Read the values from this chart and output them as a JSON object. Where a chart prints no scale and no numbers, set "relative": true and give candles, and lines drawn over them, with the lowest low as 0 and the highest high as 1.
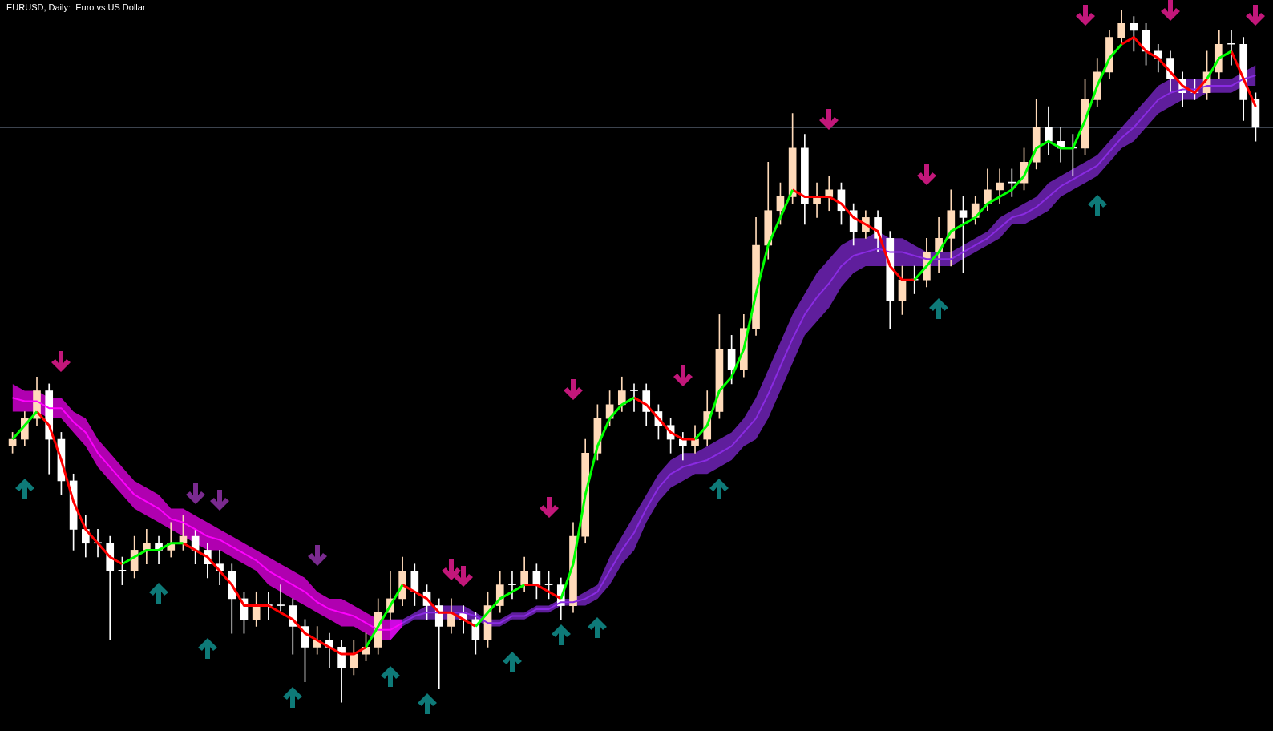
{
  "chart_data": {
    "type": "candlestick",
    "title": "EURUSD, Daily:  Euro vs US Dollar",
    "relative": true,
    "grid": false,
    "legend": false,
    "marker": "none",
    "categories": [
      null,
      null,
      null,
      null,
      null,
      null,
      null,
      null,
      null,
      null,
      null,
      null,
      null,
      null,
      null,
      null,
      null,
      null,
      null,
      null,
      null,
      null,
      null,
      null,
      null,
      null,
      null,
      null,
      null,
      null,
      null,
      null,
      null,
      null,
      null,
      null,
      null,
      null,
      null,
      null,
      null,
      null,
      null,
      null,
      null,
      null,
      null,
      null,
      null,
      null,
      null,
      null,
      null,
      null,
      null,
      null,
      null,
      null,
      null,
      null,
      null,
      null,
      null,
      null,
      null,
      null,
      null,
      null,
      null,
      null,
      null,
      null,
      null,
      null,
      null,
      null,
      null,
      null,
      null,
      null,
      null,
      null,
      null,
      null,
      null,
      null,
      null,
      null,
      null,
      null,
      null,
      null,
      null,
      null,
      null,
      null,
      null,
      null,
      null,
      null,
      null,
      null,
      null
    ],
    "ohlc": [
      [
        0.37,
        0.39,
        0.36,
        0.38
      ],
      [
        0.38,
        0.42,
        0.37,
        0.41
      ],
      [
        0.41,
        0.47,
        0.4,
        0.45
      ],
      [
        0.45,
        0.46,
        0.33,
        0.38
      ],
      [
        0.38,
        0.39,
        0.3,
        0.32
      ],
      [
        0.32,
        0.33,
        0.22,
        0.25
      ],
      [
        0.25,
        0.27,
        0.21,
        0.23
      ],
      [
        0.23,
        0.25,
        0.21,
        0.23
      ],
      [
        0.23,
        0.24,
        0.09,
        0.19
      ],
      [
        0.19,
        0.21,
        0.17,
        0.19
      ],
      [
        0.19,
        0.24,
        0.18,
        0.22
      ],
      [
        0.22,
        0.25,
        0.2,
        0.23
      ],
      [
        0.23,
        0.24,
        0.2,
        0.22
      ],
      [
        0.22,
        0.26,
        0.21,
        0.23
      ],
      [
        0.23,
        0.27,
        0.22,
        0.24
      ],
      [
        0.24,
        0.25,
        0.2,
        0.22
      ],
      [
        0.22,
        0.23,
        0.18,
        0.2
      ],
      [
        0.2,
        0.22,
        0.17,
        0.19
      ],
      [
        0.19,
        0.2,
        0.1,
        0.15
      ],
      [
        0.15,
        0.16,
        0.1,
        0.12
      ],
      [
        0.12,
        0.16,
        0.11,
        0.14
      ],
      [
        0.14,
        0.16,
        0.12,
        0.14
      ],
      [
        0.14,
        0.17,
        0.13,
        0.14
      ],
      [
        0.14,
        0.15,
        0.07,
        0.11
      ],
      [
        0.11,
        0.12,
        0.03,
        0.08
      ],
      [
        0.08,
        0.11,
        0.07,
        0.09
      ],
      [
        0.09,
        0.1,
        0.05,
        0.08
      ],
      [
        0.08,
        0.09,
        0.0,
        0.05
      ],
      [
        0.05,
        0.09,
        0.04,
        0.07
      ],
      [
        0.07,
        0.1,
        0.06,
        0.08
      ],
      [
        0.08,
        0.15,
        0.07,
        0.13
      ],
      [
        0.13,
        0.19,
        0.12,
        0.15
      ],
      [
        0.15,
        0.21,
        0.14,
        0.19
      ],
      [
        0.19,
        0.2,
        0.14,
        0.16
      ],
      [
        0.16,
        0.17,
        0.12,
        0.14
      ],
      [
        0.14,
        0.15,
        0.02,
        0.11
      ],
      [
        0.11,
        0.15,
        0.1,
        0.13
      ],
      [
        0.13,
        0.14,
        0.1,
        0.12
      ],
      [
        0.12,
        0.13,
        0.07,
        0.09
      ],
      [
        0.09,
        0.16,
        0.08,
        0.14
      ],
      [
        0.14,
        0.19,
        0.13,
        0.17
      ],
      [
        0.17,
        0.19,
        0.15,
        0.17
      ],
      [
        0.17,
        0.21,
        0.16,
        0.19
      ],
      [
        0.19,
        0.2,
        0.15,
        0.17
      ],
      [
        0.17,
        0.19,
        0.15,
        0.17
      ],
      [
        0.17,
        0.18,
        0.12,
        0.14
      ],
      [
        0.14,
        0.26,
        0.13,
        0.24
      ],
      [
        0.24,
        0.38,
        0.23,
        0.36
      ],
      [
        0.36,
        0.43,
        0.35,
        0.41
      ],
      [
        0.41,
        0.45,
        0.4,
        0.43
      ],
      [
        0.43,
        0.47,
        0.42,
        0.45
      ],
      [
        0.45,
        0.46,
        0.42,
        0.45
      ],
      [
        0.45,
        0.46,
        0.4,
        0.42
      ],
      [
        0.42,
        0.43,
        0.38,
        0.4
      ],
      [
        0.4,
        0.41,
        0.36,
        0.38
      ],
      [
        0.38,
        0.39,
        0.35,
        0.37
      ],
      [
        0.37,
        0.4,
        0.36,
        0.38
      ],
      [
        0.38,
        0.45,
        0.37,
        0.42
      ],
      [
        0.42,
        0.56,
        0.41,
        0.51
      ],
      [
        0.51,
        0.53,
        0.46,
        0.48
      ],
      [
        0.48,
        0.56,
        0.47,
        0.54
      ],
      [
        0.54,
        0.7,
        0.53,
        0.66
      ],
      [
        0.66,
        0.78,
        0.64,
        0.71
      ],
      [
        0.71,
        0.75,
        0.69,
        0.73
      ],
      [
        0.73,
        0.85,
        0.72,
        0.8
      ],
      [
        0.8,
        0.82,
        0.69,
        0.72
      ],
      [
        0.72,
        0.75,
        0.7,
        0.73
      ],
      [
        0.73,
        0.76,
        0.71,
        0.74
      ],
      [
        0.74,
        0.75,
        0.69,
        0.71
      ],
      [
        0.71,
        0.72,
        0.66,
        0.68
      ],
      [
        0.68,
        0.71,
        0.67,
        0.7
      ],
      [
        0.7,
        0.71,
        0.65,
        0.67
      ],
      [
        0.67,
        0.68,
        0.54,
        0.58
      ],
      [
        0.58,
        0.63,
        0.56,
        0.61
      ],
      [
        0.61,
        0.63,
        0.59,
        0.61
      ],
      [
        0.61,
        0.67,
        0.6,
        0.65
      ],
      [
        0.65,
        0.7,
        0.62,
        0.67
      ],
      [
        0.67,
        0.74,
        0.63,
        0.71
      ],
      [
        0.71,
        0.73,
        0.62,
        0.7
      ],
      [
        0.7,
        0.73,
        0.69,
        0.72
      ],
      [
        0.72,
        0.77,
        0.71,
        0.74
      ],
      [
        0.74,
        0.77,
        0.72,
        0.75
      ],
      [
        0.75,
        0.77,
        0.73,
        0.75
      ],
      [
        0.75,
        0.8,
        0.74,
        0.78
      ],
      [
        0.78,
        0.87,
        0.77,
        0.83
      ],
      [
        0.83,
        0.86,
        0.79,
        0.81
      ],
      [
        0.81,
        0.83,
        0.78,
        0.8
      ],
      [
        0.8,
        0.82,
        0.76,
        0.8
      ],
      [
        0.8,
        0.9,
        0.79,
        0.87
      ],
      [
        0.87,
        0.93,
        0.86,
        0.91
      ],
      [
        0.91,
        0.97,
        0.9,
        0.96
      ],
      [
        0.96,
        1.0,
        0.95,
        0.98
      ],
      [
        0.98,
        0.99,
        0.94,
        0.97
      ],
      [
        0.97,
        0.98,
        0.92,
        0.94
      ],
      [
        0.94,
        0.95,
        0.91,
        0.93
      ],
      [
        0.93,
        0.94,
        0.88,
        0.9
      ],
      [
        0.9,
        0.91,
        0.86,
        0.88
      ],
      [
        0.88,
        0.9,
        0.87,
        0.88
      ],
      [
        0.88,
        0.94,
        0.87,
        0.91
      ],
      [
        0.91,
        0.97,
        0.9,
        0.95
      ],
      [
        0.95,
        0.97,
        0.92,
        0.95
      ],
      [
        0.95,
        0.96,
        0.84,
        0.87
      ],
      [
        0.87,
        0.88,
        0.81,
        0.83
      ]
    ],
    "colors": [
      "#ffdab9",
      "#ffdab9",
      "#ffdab9",
      "#ffffff",
      "#ffffff",
      "#ffffff",
      "#ffffff",
      "#ffffff",
      "#ffffff",
      "#ffffff",
      "#ffdab9",
      "#ffdab9",
      "#ffffff",
      "#ffdab9",
      "#ffdab9",
      "#ffffff",
      "#ffffff",
      "#ffffff",
      "#ffffff",
      "#ffffff",
      "#ffdab9",
      "#ffffff",
      "#ffffff",
      "#ffffff",
      "#ffffff",
      "#ffdab9",
      "#ffffff",
      "#ffffff",
      "#ffdab9",
      "#ffdab9",
      "#ffdab9",
      "#ffdab9",
      "#ffdab9",
      "#ffffff",
      "#ffffff",
      "#ffffff",
      "#ffdab9",
      "#ffffff",
      "#ffffff",
      "#ffdab9",
      "#ffdab9",
      "#ffffff",
      "#ffdab9",
      "#ffffff",
      "#ffffff",
      "#ffffff",
      "#ffdab9",
      "#ffdab9",
      "#ffdab9",
      "#ffdab9",
      "#ffdab9",
      "#ffffff",
      "#ffffff",
      "#ffffff",
      "#ffffff",
      "#ffffff",
      "#ffdab9",
      "#ffdab9",
      "#ffdab9",
      "#ffffff",
      "#ffdab9",
      "#ffdab9",
      "#ffdab9",
      "#ffdab9",
      "#ffdab9",
      "#ffffff",
      "#ffdab9",
      "#ffdab9",
      "#ffffff",
      "#ffffff",
      "#ffdab9",
      "#ffffff",
      "#ffffff",
      "#ffdab9",
      "#ffffff",
      "#ffdab9",
      "#ffdab9",
      "#ffdab9",
      "#ffffff",
      "#ffdab9",
      "#ffdab9",
      "#ffdab9",
      "#ffffff",
      "#ffdab9",
      "#ffdab9",
      "#ffffff",
      "#ffffff",
      "#ffffff",
      "#ffdab9",
      "#ffdab9",
      "#ffdab9",
      "#ffdab9",
      "#ffffff",
      "#ffffff",
      "#ffffff",
      "#ffffff",
      "#ffffff",
      "#ffffff",
      "#ffdab9",
      "#ffdab9",
      "#ffffff",
      "#ffffff",
      "#ffffff"
    ],
    "ref_lines": [
      {
        "axis": "y",
        "value": 0.83,
        "color": "#7f8fa6"
      }
    ],
    "series": [
      {
        "type": "line",
        "color": "#ff00ff",
        "values": [
          0.44,
          0.435,
          0.435,
          0.425,
          0.425,
          0.405,
          0.39,
          0.36,
          0.34,
          0.32,
          0.3,
          0.29,
          0.28,
          0.265,
          0.26,
          0.25,
          0.24,
          0.235,
          0.225,
          0.215,
          0.205,
          0.19,
          0.18,
          0.17,
          0.16,
          0.145,
          0.135,
          0.13,
          0.125,
          0.115,
          0.105,
          0.105,
          0.115,
          null,
          null,
          null,
          null,
          null,
          null,
          null,
          null,
          null,
          null,
          null,
          null,
          null,
          null,
          null,
          null,
          null,
          null,
          null,
          null,
          null,
          null,
          null,
          null,
          null,
          null,
          null,
          null,
          null,
          null,
          null,
          null,
          null,
          null,
          null,
          null,
          null,
          null,
          null,
          null,
          null,
          null,
          null,
          null,
          null,
          null,
          null,
          null,
          null,
          null,
          null,
          null,
          null,
          null,
          null,
          null,
          null,
          null,
          null,
          null,
          null,
          null,
          null,
          null,
          null,
          null,
          null,
          null,
          null,
          null
        ],
        "upper": [
          0.46,
          0.45,
          0.45,
          0.44,
          0.44,
          0.42,
          0.41,
          0.38,
          0.36,
          0.34,
          0.32,
          0.31,
          0.3,
          0.28,
          0.28,
          0.27,
          0.26,
          0.25,
          0.24,
          0.23,
          0.22,
          0.21,
          0.2,
          0.19,
          0.18,
          0.16,
          0.15,
          0.15,
          0.14,
          0.13,
          0.12,
          0.12,
          0.12,
          null,
          null,
          null,
          null,
          null,
          null,
          null,
          null,
          null,
          null,
          null,
          null,
          null,
          null,
          null,
          null,
          null,
          null,
          null,
          null,
          null,
          null,
          null,
          null,
          null,
          null,
          null,
          null,
          null,
          null,
          null,
          null,
          null,
          null,
          null,
          null,
          null,
          null,
          null,
          null,
          null,
          null,
          null,
          null,
          null,
          null,
          null,
          null,
          null,
          null,
          null,
          null,
          null,
          null,
          null,
          null,
          null,
          null,
          null,
          null,
          null,
          null,
          null,
          null,
          null,
          null,
          null,
          null,
          null,
          null
        ],
        "lower": [
          0.42,
          0.42,
          0.42,
          0.41,
          0.41,
          0.39,
          0.37,
          0.34,
          0.32,
          0.3,
          0.28,
          0.27,
          0.26,
          0.25,
          0.24,
          0.23,
          0.22,
          0.22,
          0.21,
          0.2,
          0.19,
          0.17,
          0.16,
          0.15,
          0.14,
          0.13,
          0.12,
          0.11,
          0.11,
          0.1,
          0.09,
          0.09,
          0.11,
          null,
          null,
          null,
          null,
          null,
          null,
          null,
          null,
          null,
          null,
          null,
          null,
          null,
          null,
          null,
          null,
          null,
          null,
          null,
          null,
          null,
          null,
          null,
          null,
          null,
          null,
          null,
          null,
          null,
          null,
          null,
          null,
          null,
          null,
          null,
          null,
          null,
          null,
          null,
          null,
          null,
          null,
          null,
          null,
          null,
          null,
          null,
          null,
          null,
          null,
          null,
          null,
          null,
          null,
          null,
          null,
          null,
          null,
          null,
          null,
          null,
          null,
          null,
          null,
          null,
          null,
          null,
          null,
          null,
          null
        ]
      },
      {
        "type": "line",
        "color": "#8a2be2",
        "values": [
          null,
          null,
          null,
          null,
          null,
          null,
          null,
          null,
          null,
          null,
          null,
          null,
          null,
          null,
          null,
          null,
          null,
          null,
          null,
          null,
          null,
          null,
          null,
          null,
          null,
          null,
          null,
          null,
          null,
          null,
          null,
          null,
          0.115,
          0.125,
          0.13,
          0.13,
          0.13,
          0.13,
          0.125,
          0.115,
          0.115,
          0.125,
          0.125,
          0.135,
          0.135,
          0.145,
          0.145,
          0.15,
          0.16,
          0.19,
          0.22,
          0.245,
          0.28,
          0.31,
          0.33,
          0.34,
          0.345,
          0.35,
          0.36,
          0.37,
          0.39,
          0.41,
          0.445,
          0.485,
          0.525,
          0.56,
          0.585,
          0.605,
          0.63,
          0.645,
          0.65,
          0.655,
          0.65,
          0.65,
          0.645,
          0.64,
          0.64,
          0.64,
          0.65,
          0.66,
          0.67,
          0.685,
          0.7,
          0.705,
          0.715,
          0.73,
          0.745,
          0.755,
          0.765,
          0.775,
          0.795,
          0.815,
          0.83,
          0.85,
          0.87,
          0.88,
          0.885,
          0.885,
          0.89,
          0.89,
          0.89,
          0.9,
          0.905
        ],
        "upper": [
          null,
          null,
          null,
          null,
          null,
          null,
          null,
          null,
          null,
          null,
          null,
          null,
          null,
          null,
          null,
          null,
          null,
          null,
          null,
          null,
          null,
          null,
          null,
          null,
          null,
          null,
          null,
          null,
          null,
          null,
          null,
          0.12,
          0.12,
          0.13,
          0.14,
          0.14,
          0.14,
          0.14,
          0.13,
          0.12,
          0.12,
          0.13,
          0.13,
          0.14,
          0.14,
          0.15,
          0.15,
          0.16,
          0.17,
          0.21,
          0.24,
          0.27,
          0.3,
          0.33,
          0.35,
          0.36,
          0.36,
          0.37,
          0.38,
          0.39,
          0.41,
          0.44,
          0.48,
          0.52,
          0.56,
          0.59,
          0.62,
          0.64,
          0.66,
          0.67,
          0.67,
          0.68,
          0.67,
          0.67,
          0.66,
          0.65,
          0.65,
          0.65,
          0.66,
          0.67,
          0.68,
          0.7,
          0.71,
          0.72,
          0.73,
          0.75,
          0.76,
          0.77,
          0.78,
          0.79,
          0.81,
          0.83,
          0.85,
          0.87,
          0.89,
          0.9,
          0.9,
          0.9,
          0.9,
          0.9,
          0.9,
          0.91,
          0.92
        ],
        "lower": [
          null,
          null,
          null,
          null,
          null,
          null,
          null,
          null,
          null,
          null,
          null,
          null,
          null,
          null,
          null,
          null,
          null,
          null,
          null,
          null,
          null,
          null,
          null,
          null,
          null,
          null,
          null,
          null,
          null,
          null,
          null,
          0.09,
          0.11,
          0.12,
          0.12,
          0.12,
          0.12,
          0.12,
          0.12,
          0.11,
          0.11,
          0.12,
          0.12,
          0.13,
          0.13,
          0.14,
          0.14,
          0.14,
          0.15,
          0.17,
          0.2,
          0.22,
          0.26,
          0.29,
          0.31,
          0.32,
          0.33,
          0.33,
          0.34,
          0.35,
          0.37,
          0.38,
          0.41,
          0.45,
          0.49,
          0.53,
          0.55,
          0.57,
          0.6,
          0.62,
          0.63,
          0.63,
          0.63,
          0.63,
          0.63,
          0.63,
          0.63,
          0.63,
          0.64,
          0.65,
          0.66,
          0.67,
          0.69,
          0.69,
          0.7,
          0.71,
          0.73,
          0.74,
          0.75,
          0.76,
          0.78,
          0.8,
          0.81,
          0.83,
          0.85,
          0.86,
          0.87,
          0.87,
          0.88,
          0.88,
          0.88,
          0.89,
          0.89
        ]
      },
      {
        "type": "line",
        "color": "#00ff00",
        "values": [
          0.38,
          0.4,
          0.42,
          null,
          null,
          null,
          null,
          null,
          null,
          0.2,
          0.21,
          0.22,
          0.22,
          0.23,
          0.23,
          null,
          null,
          null,
          null,
          null,
          null,
          null,
          null,
          null,
          null,
          null,
          null,
          null,
          null,
          0.08,
          0.11,
          0.14,
          0.17,
          null,
          null,
          null,
          null,
          null,
          0.11,
          0.13,
          0.15,
          0.16,
          0.17,
          null,
          null,
          0.15,
          0.2,
          0.3,
          0.37,
          0.41,
          0.43,
          0.44,
          null,
          null,
          null,
          null,
          0.38,
          0.4,
          0.45,
          0.47,
          0.51,
          0.59,
          0.66,
          0.7,
          0.74,
          null,
          null,
          null,
          null,
          null,
          null,
          null,
          null,
          null,
          0.61,
          0.63,
          0.65,
          0.68,
          0.69,
          0.7,
          0.72,
          0.73,
          0.74,
          0.76,
          0.8,
          0.81,
          0.8,
          0.8,
          0.84,
          0.89,
          0.93,
          0.95,
          null,
          null,
          null,
          null,
          null,
          null,
          0.9,
          0.93,
          0.94,
          null,
          null
        ]
      },
      {
        "type": "line",
        "color": "#ff0000",
        "values": [
          null,
          null,
          0.42,
          0.4,
          0.35,
          0.29,
          0.25,
          0.23,
          0.21,
          0.2,
          null,
          null,
          null,
          null,
          0.23,
          0.22,
          0.21,
          0.19,
          0.17,
          0.14,
          0.14,
          0.14,
          0.13,
          0.12,
          0.1,
          0.09,
          0.08,
          0.07,
          0.07,
          0.08,
          null,
          null,
          0.17,
          0.16,
          0.15,
          0.13,
          0.13,
          0.12,
          0.11,
          null,
          null,
          null,
          0.17,
          0.17,
          0.16,
          0.15,
          null,
          null,
          null,
          null,
          null,
          0.44,
          0.43,
          0.41,
          0.39,
          0.38,
          0.38,
          null,
          null,
          null,
          null,
          null,
          null,
          null,
          0.74,
          0.73,
          0.73,
          0.73,
          0.72,
          0.7,
          0.69,
          0.68,
          0.63,
          0.61,
          0.61,
          null,
          null,
          null,
          null,
          null,
          null,
          null,
          null,
          null,
          null,
          null,
          null,
          null,
          null,
          null,
          null,
          0.95,
          0.96,
          0.94,
          0.93,
          0.91,
          0.89,
          0.88,
          0.9,
          null,
          0.94,
          0.9,
          0.86
        ]
      }
    ]
  }
}
